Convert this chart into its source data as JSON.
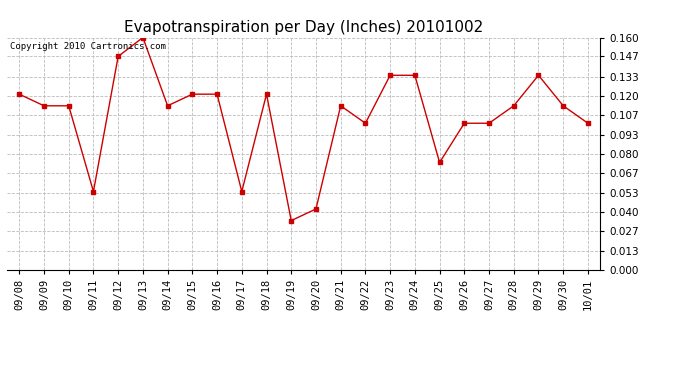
{
  "title": "Evapotranspiration per Day (Inches) 20101002",
  "copyright": "Copyright 2010 Cartronics.com",
  "x_labels": [
    "09/08",
    "09/09",
    "09/10",
    "09/11",
    "09/12",
    "09/13",
    "09/14",
    "09/15",
    "09/16",
    "09/17",
    "09/18",
    "09/19",
    "09/20",
    "09/21",
    "09/22",
    "09/23",
    "09/24",
    "09/25",
    "09/26",
    "09/27",
    "09/28",
    "09/29",
    "09/30",
    "10/01"
  ],
  "y_values": [
    0.121,
    0.113,
    0.113,
    0.054,
    0.147,
    0.16,
    0.113,
    0.121,
    0.121,
    0.054,
    0.121,
    0.034,
    0.042,
    0.113,
    0.101,
    0.134,
    0.134,
    0.074,
    0.101,
    0.101,
    0.113,
    0.134,
    0.113,
    0.101
  ],
  "y_ticks": [
    0.0,
    0.013,
    0.027,
    0.04,
    0.053,
    0.067,
    0.08,
    0.093,
    0.107,
    0.12,
    0.133,
    0.147,
    0.16
  ],
  "line_color": "#cc0000",
  "marker": "s",
  "marker_size": 3,
  "grid_color": "#bbbbbb",
  "bg_color": "#ffffff",
  "title_fontsize": 11,
  "copyright_fontsize": 6.5,
  "ylim": [
    0.0,
    0.16
  ],
  "tick_label_fontsize": 7.5
}
